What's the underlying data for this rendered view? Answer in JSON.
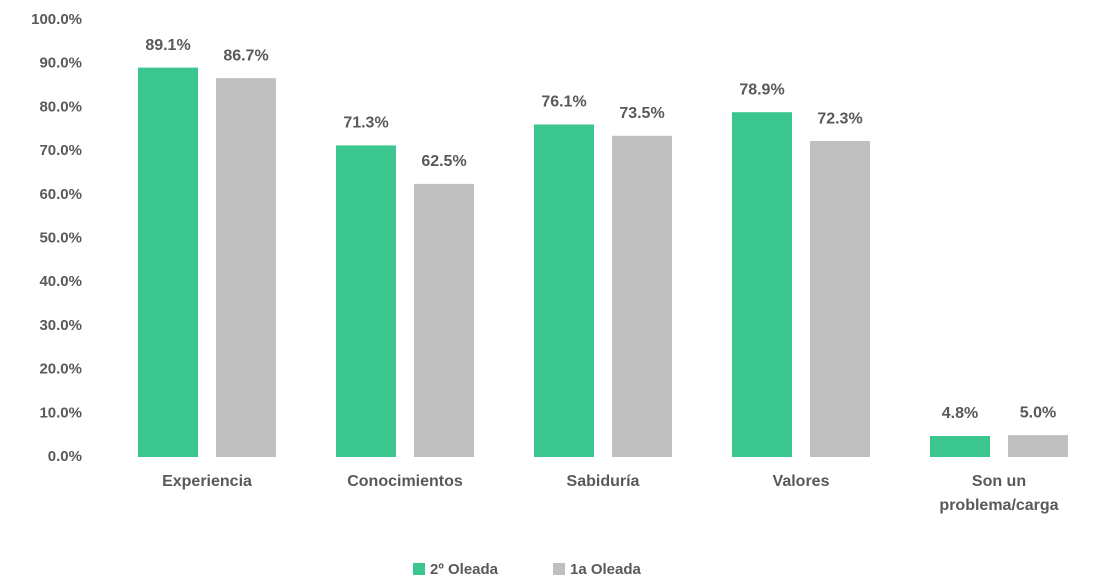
{
  "chart_data": {
    "type": "bar",
    "categories": [
      "Experiencia",
      "Conocimientos",
      "Sabiduría",
      "Valores",
      "Son un problema/carga"
    ],
    "series": [
      {
        "name": "2º Oleada",
        "color": "#3cc68f",
        "values": [
          89.1,
          71.3,
          76.1,
          78.9,
          4.8
        ],
        "value_labels": [
          "89.1%",
          "71.3%",
          "76.1%",
          "78.9%",
          "4.8%"
        ]
      },
      {
        "name": "1a Oleada",
        "color": "#bfbfbf",
        "values": [
          86.7,
          62.5,
          73.5,
          72.3,
          5.0
        ],
        "value_labels": [
          "86.7%",
          "62.5%",
          "73.5%",
          "72.3%",
          "5.0%"
        ]
      }
    ],
    "ylim": [
      0,
      100
    ],
    "yticks": [
      {
        "value": 0,
        "label": "0.0%"
      },
      {
        "value": 10,
        "label": "10.0%"
      },
      {
        "value": 20,
        "label": "20.0%"
      },
      {
        "value": 30,
        "label": "30.0%"
      },
      {
        "value": 40,
        "label": "40.0%"
      },
      {
        "value": 50,
        "label": "50.0%"
      },
      {
        "value": 60,
        "label": "60.0%"
      },
      {
        "value": 70,
        "label": "70.0%"
      },
      {
        "value": 80,
        "label": "80.0%"
      },
      {
        "value": 90,
        "label": "90.0%"
      },
      {
        "value": 100,
        "label": "100.0%"
      }
    ],
    "grid": false,
    "legend": "bottom"
  }
}
